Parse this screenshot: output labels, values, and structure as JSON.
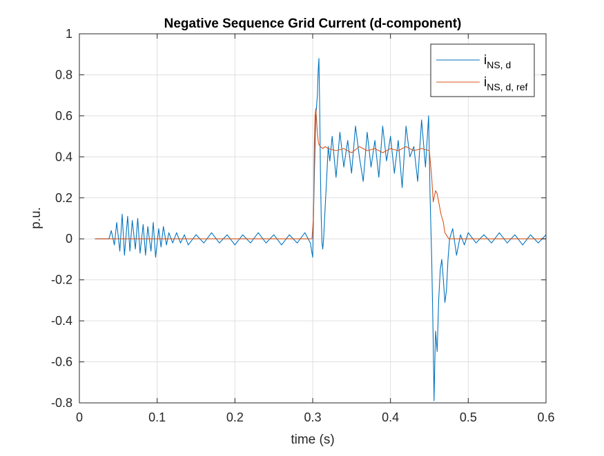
{
  "chart_data": {
    "type": "line",
    "title": "Negative Sequence Grid Current (d-component)",
    "xlabel": "time (s)",
    "ylabel": "p.u.",
    "xlim": [
      0,
      0.6
    ],
    "ylim": [
      -0.8,
      1
    ],
    "xticks": [
      0,
      0.1,
      0.2,
      0.3,
      0.4,
      0.5,
      0.6
    ],
    "xtick_labels": [
      "0",
      "0.1",
      "0.2",
      "0.3",
      "0.4",
      "0.5",
      "0.6"
    ],
    "yticks": [
      -0.8,
      -0.6,
      -0.4,
      -0.2,
      0,
      0.2,
      0.4,
      0.6,
      0.8,
      1
    ],
    "ytick_labels": [
      "-0.8",
      "-0.6",
      "-0.4",
      "-0.2",
      "0",
      "0.2",
      "0.4",
      "0.6",
      "0.8",
      "1"
    ],
    "grid": true,
    "legend_position": "top-right",
    "series": [
      {
        "name": "i",
        "subscript": "NS, d",
        "color": "#0072BD",
        "x": [
          0.02,
          0.038,
          0.041,
          0.045,
          0.048,
          0.052,
          0.055,
          0.058,
          0.062,
          0.065,
          0.068,
          0.072,
          0.075,
          0.078,
          0.082,
          0.085,
          0.088,
          0.092,
          0.095,
          0.098,
          0.102,
          0.105,
          0.108,
          0.112,
          0.115,
          0.12,
          0.125,
          0.13,
          0.135,
          0.14,
          0.15,
          0.16,
          0.17,
          0.18,
          0.19,
          0.2,
          0.21,
          0.22,
          0.23,
          0.24,
          0.25,
          0.26,
          0.27,
          0.28,
          0.29,
          0.297,
          0.3,
          0.302,
          0.304,
          0.306,
          0.307,
          0.308,
          0.309,
          0.31,
          0.311,
          0.312,
          0.313,
          0.314,
          0.316,
          0.318,
          0.32,
          0.322,
          0.325,
          0.33,
          0.335,
          0.34,
          0.345,
          0.35,
          0.355,
          0.36,
          0.365,
          0.37,
          0.375,
          0.38,
          0.385,
          0.39,
          0.395,
          0.4,
          0.405,
          0.41,
          0.415,
          0.42,
          0.425,
          0.43,
          0.435,
          0.44,
          0.445,
          0.449,
          0.451,
          0.453,
          0.455,
          0.456,
          0.457,
          0.458,
          0.46,
          0.462,
          0.464,
          0.466,
          0.468,
          0.47,
          0.472,
          0.474,
          0.476,
          0.48,
          0.485,
          0.49,
          0.495,
          0.5,
          0.51,
          0.52,
          0.53,
          0.54,
          0.55,
          0.56,
          0.57,
          0.58,
          0.59,
          0.6
        ],
        "y": [
          0.0,
          0.0,
          0.04,
          -0.03,
          0.08,
          -0.06,
          0.12,
          -0.08,
          0.11,
          -0.06,
          0.09,
          -0.05,
          0.1,
          -0.07,
          0.07,
          -0.08,
          0.06,
          -0.06,
          0.08,
          -0.09,
          0.05,
          -0.04,
          0.06,
          -0.03,
          0.03,
          -0.02,
          0.03,
          -0.02,
          0.02,
          -0.03,
          0.02,
          -0.02,
          0.03,
          -0.02,
          0.02,
          -0.03,
          0.02,
          -0.02,
          0.03,
          -0.02,
          0.02,
          -0.03,
          0.02,
          -0.02,
          0.03,
          -0.02,
          -0.09,
          0.3,
          0.6,
          0.7,
          0.82,
          0.88,
          0.65,
          0.3,
          0.1,
          -0.02,
          -0.05,
          0.0,
          0.15,
          0.3,
          0.45,
          0.38,
          0.5,
          0.3,
          0.52,
          0.35,
          0.48,
          0.32,
          0.55,
          0.4,
          0.28,
          0.52,
          0.35,
          0.48,
          0.3,
          0.55,
          0.38,
          0.5,
          0.32,
          0.48,
          0.25,
          0.55,
          0.4,
          0.45,
          0.28,
          0.58,
          0.35,
          0.6,
          0.2,
          -0.1,
          -0.5,
          -0.79,
          -0.6,
          -0.45,
          -0.55,
          -0.3,
          -0.15,
          -0.1,
          -0.2,
          -0.31,
          -0.25,
          -0.1,
          0.0,
          0.05,
          -0.08,
          0.02,
          -0.03,
          0.03,
          -0.02,
          0.02,
          -0.02,
          0.03,
          -0.02,
          0.02,
          -0.03,
          0.02,
          -0.02,
          0.02
        ]
      },
      {
        "name": "i",
        "subscript": "NS, d, ref",
        "color": "#D95319",
        "x": [
          0.02,
          0.05,
          0.1,
          0.15,
          0.2,
          0.25,
          0.299,
          0.301,
          0.302,
          0.303,
          0.304,
          0.305,
          0.306,
          0.307,
          0.308,
          0.31,
          0.313,
          0.316,
          0.32,
          0.33,
          0.34,
          0.35,
          0.36,
          0.37,
          0.38,
          0.39,
          0.4,
          0.41,
          0.42,
          0.43,
          0.44,
          0.45,
          0.453,
          0.455,
          0.456,
          0.458,
          0.46,
          0.462,
          0.465,
          0.468,
          0.47,
          0.475,
          0.48,
          0.5,
          0.55,
          0.6
        ],
        "y": [
          0.0,
          0.0,
          0.0,
          0.0,
          0.0,
          0.0,
          0.0,
          0.1,
          0.45,
          0.6,
          0.635,
          0.58,
          0.52,
          0.48,
          0.46,
          0.45,
          0.44,
          0.45,
          0.44,
          0.43,
          0.44,
          0.42,
          0.45,
          0.43,
          0.44,
          0.42,
          0.44,
          0.43,
          0.45,
          0.43,
          0.44,
          0.43,
          0.3,
          0.18,
          0.2,
          0.235,
          0.22,
          0.18,
          0.12,
          0.08,
          0.03,
          0.0,
          0.0,
          0.0,
          0.0,
          0.0
        ]
      }
    ]
  }
}
